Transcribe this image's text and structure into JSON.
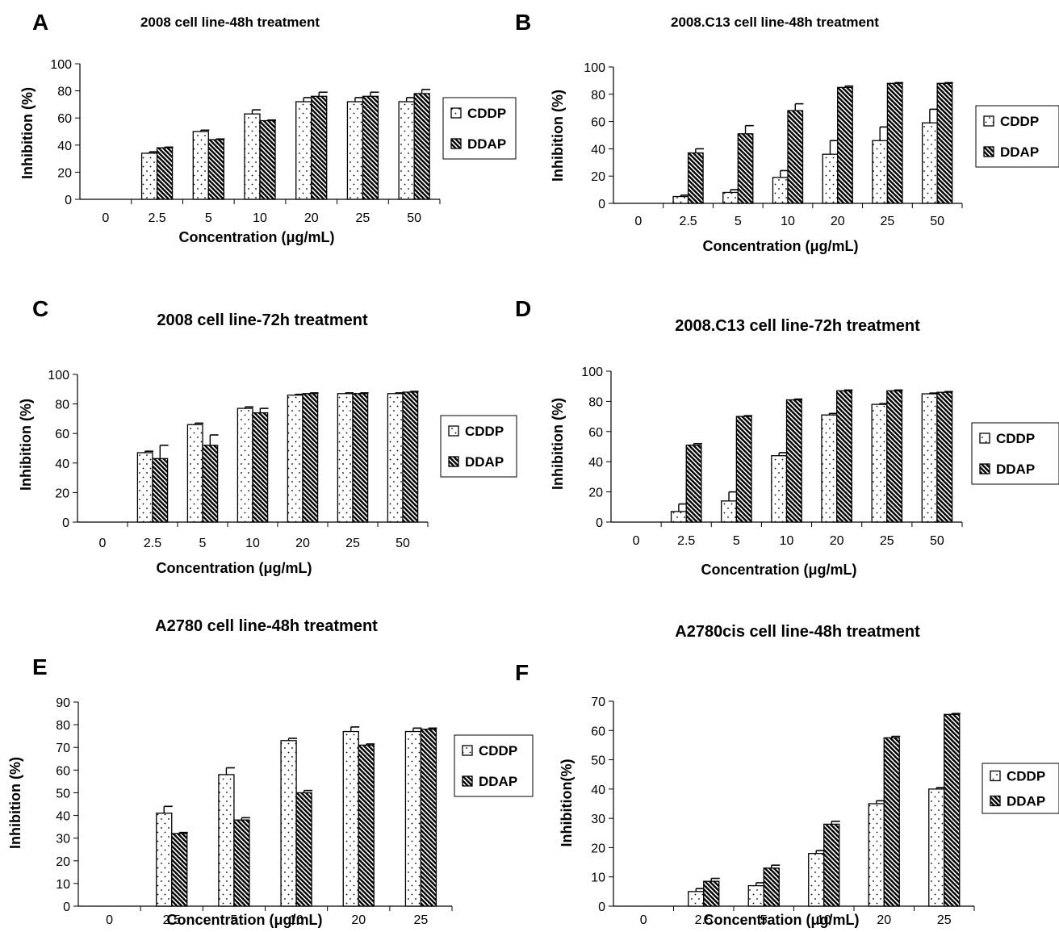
{
  "legend_labels": [
    "CDDP",
    "DDAP"
  ],
  "colors": {
    "bar_fill": "#ffffff",
    "stroke": "#000000"
  },
  "chart_data": [
    {
      "panel": "A",
      "type": "bar",
      "title": "2008 cell line-48h treatment",
      "xlabel": "Concentration (μg/mL)",
      "ylabel": "Inhibition (%)",
      "ylim": [
        0,
        100
      ],
      "yticks": [
        0,
        20,
        40,
        60,
        80,
        100
      ],
      "categories": [
        "0",
        "2.5",
        "5",
        "10",
        "20",
        "25",
        "50"
      ],
      "series": [
        {
          "name": "CDDP",
          "values": [
            0,
            34,
            50,
            63,
            72,
            72,
            72
          ],
          "errors": [
            0,
            1,
            1,
            3,
            3,
            3,
            3
          ]
        },
        {
          "name": "DDAP",
          "values": [
            0,
            38,
            44,
            58,
            76,
            76,
            78
          ],
          "errors": [
            0,
            0.5,
            0.5,
            0.5,
            3,
            3,
            3
          ]
        }
      ],
      "legend": "right",
      "grid": false
    },
    {
      "panel": "B",
      "type": "bar",
      "title": "2008.C13 cell line-48h treatment",
      "xlabel": "Concentration (μg/mL)",
      "ylabel": "Inhibition (%)",
      "ylim": [
        0,
        100
      ],
      "yticks": [
        0,
        20,
        40,
        60,
        80,
        100
      ],
      "categories": [
        "0",
        "2.5",
        "5",
        "10",
        "20",
        "25",
        "50"
      ],
      "series": [
        {
          "name": "CDDP",
          "values": [
            0,
            5,
            8,
            19,
            36,
            46,
            59
          ],
          "errors": [
            0,
            1,
            2,
            5,
            10,
            10,
            10
          ]
        },
        {
          "name": "DDAP",
          "values": [
            0,
            37,
            51,
            68,
            85,
            88,
            88
          ],
          "errors": [
            0,
            3,
            6,
            5,
            1,
            0.5,
            0.5
          ]
        }
      ],
      "legend": "right",
      "grid": false
    },
    {
      "panel": "C",
      "type": "bar",
      "title": "2008 cell line-72h treatment",
      "xlabel": "Concentration (μg/mL)",
      "ylabel": "Inhibition (%)",
      "ylim": [
        0,
        100
      ],
      "yticks": [
        0,
        20,
        40,
        60,
        80,
        100
      ],
      "categories": [
        "0",
        "2.5",
        "5",
        "10",
        "20",
        "25",
        "50"
      ],
      "series": [
        {
          "name": "CDDP",
          "values": [
            0,
            47,
            66,
            77,
            86,
            87,
            87
          ],
          "errors": [
            0,
            1,
            1,
            1,
            0.5,
            0.5,
            0.5
          ]
        },
        {
          "name": "DDAP",
          "values": [
            0,
            43,
            52,
            74,
            87,
            87,
            88
          ],
          "errors": [
            0,
            9,
            7,
            3,
            0.5,
            0.5,
            0.5
          ]
        }
      ],
      "legend": "right",
      "grid": false
    },
    {
      "panel": "D",
      "type": "bar",
      "title": "2008.C13 cell line-72h treatment",
      "xlabel": "Concentration (μg/mL)",
      "ylabel": "Inhibition (%)",
      "ylim": [
        0,
        100
      ],
      "yticks": [
        0,
        20,
        40,
        60,
        80,
        100
      ],
      "categories": [
        "0",
        "2.5",
        "5",
        "10",
        "20",
        "25",
        "50"
      ],
      "series": [
        {
          "name": "CDDP",
          "values": [
            0,
            7,
            14,
            44,
            71,
            78,
            85
          ],
          "errors": [
            0,
            5,
            6,
            2,
            1,
            0.5,
            0.5
          ]
        },
        {
          "name": "DDAP",
          "values": [
            0,
            51,
            70,
            81,
            87,
            87,
            86
          ],
          "errors": [
            0,
            1,
            0.5,
            0.5,
            0.5,
            0.5,
            0.5
          ]
        }
      ],
      "legend": "right",
      "grid": false
    },
    {
      "panel": "E",
      "type": "bar",
      "title": "A2780 cell line-48h treatment",
      "xlabel": "Concentration (μg/mL)",
      "ylabel": "Inhibition (%)",
      "ylim": [
        0,
        90
      ],
      "yticks": [
        0,
        10,
        20,
        30,
        40,
        50,
        60,
        70,
        80,
        90
      ],
      "categories": [
        "0",
        "2.5",
        "5",
        "10",
        "20",
        "25"
      ],
      "series": [
        {
          "name": "CDDP",
          "values": [
            0,
            41,
            58,
            73,
            77,
            77
          ],
          "errors": [
            0,
            3,
            3,
            1,
            2,
            1.5
          ]
        },
        {
          "name": "DDAP",
          "values": [
            0,
            32,
            38,
            50,
            71,
            78
          ],
          "errors": [
            0,
            0.5,
            1,
            1,
            0.5,
            0.5
          ]
        }
      ],
      "legend": "right",
      "grid": false
    },
    {
      "panel": "F",
      "type": "bar",
      "title": "A2780cis cell line-48h treatment",
      "xlabel": "Concentration (μg/mL)",
      "ylabel": "Inhibition(%)",
      "ylim": [
        0,
        70
      ],
      "yticks": [
        0,
        10,
        20,
        30,
        40,
        50,
        60,
        70
      ],
      "categories": [
        "0",
        "2.5",
        "5",
        "10",
        "20",
        "25"
      ],
      "series": [
        {
          "name": "CDDP",
          "values": [
            0,
            5,
            7,
            18,
            35,
            40
          ],
          "errors": [
            0,
            1,
            1,
            1,
            1,
            0.5
          ]
        },
        {
          "name": "DDAP",
          "values": [
            0,
            8.5,
            13,
            28,
            57.5,
            65.5
          ],
          "errors": [
            0,
            1,
            1,
            1,
            0.5,
            0.3
          ]
        }
      ],
      "legend": "right",
      "grid": false
    }
  ]
}
